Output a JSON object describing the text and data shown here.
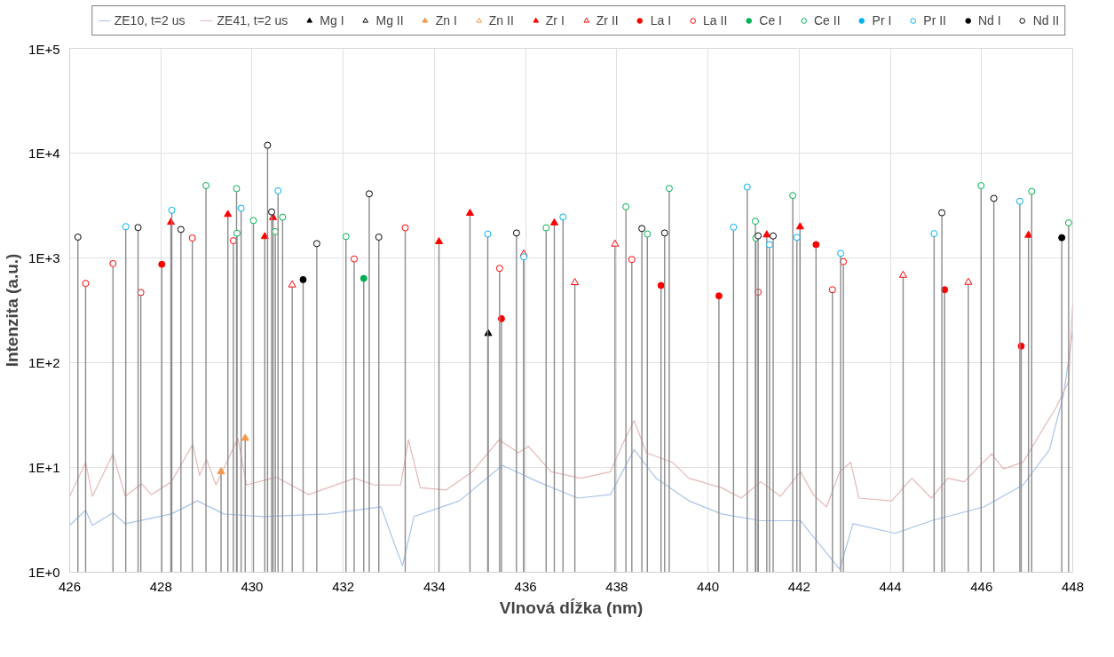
{
  "chart_data": {
    "type": "lollipop",
    "xlabel": "Vlnová dĺžka (nm)",
    "ylabel": "Intenzita (a.u.)",
    "xlim": [
      426,
      448
    ],
    "xticks": [
      426,
      428,
      430,
      432,
      434,
      436,
      438,
      440,
      442,
      444,
      446,
      448
    ],
    "ylim": [
      1,
      100000
    ],
    "yticks": [
      {
        "value": 1,
        "label": "1E+0"
      },
      {
        "value": 10,
        "label": "1E+1"
      },
      {
        "value": 100,
        "label": "1E+2"
      },
      {
        "value": 1000,
        "label": "1E+3"
      },
      {
        "value": 10000,
        "label": "1E+4"
      },
      {
        "value": 100000,
        "label": "1E+5"
      }
    ],
    "log": "y",
    "grid": true,
    "legend": "top",
    "series": [
      {
        "name": "ZE10, t=2 us",
        "type": "line",
        "color": "#a9c4eb",
        "x": [
          426.0,
          426.35,
          426.5,
          426.95,
          427.22,
          428.23,
          428.8,
          429.38,
          430.23,
          431.67,
          432.83,
          433.3,
          433.55,
          434.55,
          435.49,
          436.27,
          437.14,
          437.86,
          438.38,
          438.86,
          439.58,
          440.3,
          441.16,
          442.03,
          442.89,
          443.18,
          444.11,
          444.9,
          446.05,
          446.91,
          447.49,
          447.8,
          448.0
        ],
        "values": [
          2.8,
          3.9,
          2.8,
          3.7,
          2.9,
          3.6,
          4.8,
          3.6,
          3.4,
          3.6,
          4.2,
          1.15,
          3.4,
          4.8,
          10.5,
          7.3,
          5.1,
          5.5,
          14.8,
          7.9,
          4.8,
          3.6,
          3.1,
          3.1,
          1.07,
          2.9,
          2.35,
          3.1,
          4.2,
          6.8,
          14.8,
          50,
          200
        ]
      },
      {
        "name": "ZE41, t=2 us",
        "type": "line",
        "color": "#e6b8b7",
        "x": [
          426.0,
          426.35,
          426.5,
          426.95,
          427.22,
          427.58,
          427.79,
          428.23,
          428.7,
          428.85,
          429.0,
          429.21,
          429.69,
          429.88,
          430.53,
          431.24,
          432.25,
          432.68,
          433.26,
          433.43,
          433.69,
          434.26,
          434.83,
          435.42,
          435.84,
          436.06,
          436.56,
          437.21,
          437.86,
          438.14,
          438.38,
          438.65,
          439.22,
          439.58,
          440.3,
          440.73,
          441.16,
          441.59,
          442.03,
          442.31,
          442.6,
          442.89,
          443.13,
          443.31,
          444.03,
          444.47,
          444.9,
          445.26,
          445.62,
          446.22,
          446.48,
          446.91,
          447.34,
          447.63,
          447.91,
          448.0
        ],
        "values": [
          5.3,
          11.2,
          5.3,
          13.5,
          5.3,
          7.0,
          5.5,
          7.3,
          16.6,
          8.4,
          12,
          6.8,
          19,
          6.8,
          8.1,
          5.5,
          7.9,
          6.8,
          6.8,
          18.4,
          6.4,
          6.1,
          9.1,
          18.4,
          13.8,
          15.9,
          9.1,
          7.9,
          9.1,
          17.1,
          28,
          13.8,
          11.2,
          7.9,
          6.4,
          5.1,
          7.3,
          5.3,
          9.1,
          5.5,
          4.2,
          9.1,
          11.2,
          5.1,
          4.8,
          7.9,
          5.1,
          7.9,
          7.3,
          13.5,
          9.7,
          11.2,
          23,
          37,
          66,
          370
        ]
      },
      {
        "name": "Mg I",
        "color": "#000000",
        "marker": "triangle",
        "x": [
          435.18
        ],
        "values": [
          190
        ]
      },
      {
        "name": "Mg II",
        "color": "#000000",
        "marker": "triangle_open"
      },
      {
        "name": "Zn I",
        "color": "#f79646",
        "marker": "triangle",
        "x": [
          429.32,
          429.85
        ],
        "values": [
          9.1,
          19
        ]
      },
      {
        "name": "Zn II",
        "color": "#f79646",
        "marker": "triangle_open"
      },
      {
        "name": "Zr I",
        "color": "#ff0000",
        "marker": "triangle",
        "x": [
          428.22,
          429.47,
          430.28,
          430.46,
          434.1,
          434.78,
          436.63,
          441.29,
          442.02,
          447.03
        ],
        "values": [
          2190,
          2600,
          1600,
          2430,
          1430,
          2670,
          2160,
          1660,
          1980,
          1650
        ]
      },
      {
        "name": "Zr II",
        "color": "#ff0000",
        "marker": "triangle_open",
        "x": [
          430.88,
          435.96,
          437.08,
          437.96,
          444.28,
          445.71
        ],
        "values": [
          553,
          1090,
          582,
          1356,
          684,
          586
        ]
      },
      {
        "name": "La I",
        "color": "#ff0000",
        "marker": "circle",
        "x": [
          428.02,
          435.47,
          438.97,
          440.24,
          442.37,
          445.19,
          446.87
        ],
        "values": [
          870,
          263,
          546,
          434,
          1340,
          497,
          144
        ]
      },
      {
        "name": "La II",
        "color": "#ff0000",
        "marker": "circle_open",
        "x": [
          426.35,
          426.95,
          427.56,
          428.69,
          429.59,
          432.24,
          433.36,
          435.43,
          438.33,
          441.1,
          442.73,
          442.97
        ],
        "values": [
          571,
          883,
          468,
          1550,
          1460,
          977,
          1940,
          795,
          967,
          471,
          497,
          922
        ]
      },
      {
        "name": "Ce I",
        "color": "#00b050",
        "marker": "circle",
        "x": [
          432.45
        ],
        "values": [
          637
        ]
      },
      {
        "name": "Ce II",
        "color": "#00b050",
        "marker": "circle_open",
        "x": [
          428.99,
          429.66,
          429.67,
          430.03,
          430.51,
          430.67,
          432.06,
          436.45,
          438.2,
          438.67,
          439.15,
          441.04,
          441.05,
          441.86,
          445.99,
          447.1,
          447.91
        ],
        "values": [
          4900,
          4590,
          1720,
          2275,
          1780,
          2450,
          1600,
          1940,
          3080,
          1690,
          4600,
          2240,
          1550,
          3940,
          4900,
          4310,
          2160
        ]
      },
      {
        "name": "Pr I",
        "color": "#00b0f0",
        "marker": "circle"
      },
      {
        "name": "Pr II",
        "color": "#00b0f0",
        "marker": "circle_open",
        "x": [
          427.23,
          428.24,
          429.76,
          430.57,
          435.17,
          435.96,
          436.82,
          440.56,
          440.86,
          441.35,
          441.95,
          442.91,
          444.96,
          446.84
        ],
        "values": [
          1990,
          2850,
          2980,
          4370,
          1690,
          1025,
          2460,
          1965,
          4750,
          1340,
          1570,
          1105,
          1706,
          3470
        ]
      },
      {
        "name": "Nd I",
        "color": "#000000",
        "marker": "circle",
        "x": [
          431.12,
          447.76
        ],
        "values": [
          621,
          1560
        ]
      },
      {
        "name": "Nd II",
        "color": "#000000",
        "marker": "circle_open",
        "x": [
          426.18,
          427.5,
          428.44,
          430.34,
          430.43,
          431.42,
          432.57,
          432.78,
          435.8,
          438.55,
          439.05,
          441.1,
          441.43,
          445.13,
          446.27
        ],
        "values": [
          1580,
          1950,
          1870,
          11900,
          2750,
          1370,
          4090,
          1580,
          1730,
          1910,
          1730,
          1625,
          1620,
          2700,
          3700
        ]
      }
    ]
  }
}
